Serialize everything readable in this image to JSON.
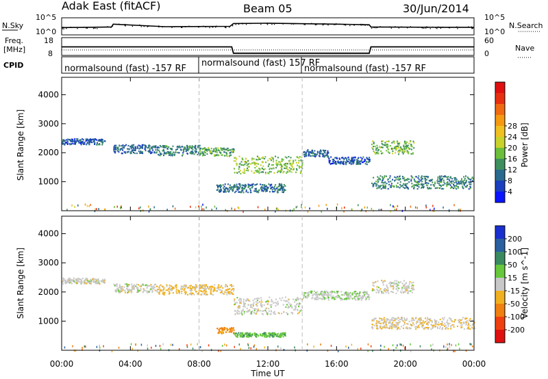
{
  "header": {
    "station": "Adak East (fitACF)",
    "beam": "Beam 05",
    "date": "30/Jun/2014"
  },
  "nsky_panel": {
    "left_label": "N.Sky",
    "left_ticks": [
      "10^5",
      "10^0"
    ],
    "right_label": "N.Search",
    "right_ticks": [
      "10^5",
      "10^0"
    ]
  },
  "freq_panel": {
    "left_label_line1": "Freq.",
    "left_label_line2": "[MHz]",
    "left_ticks": [
      "18",
      "8"
    ],
    "right_label": "Nave",
    "right_ticks": [
      "60",
      "0"
    ]
  },
  "cpid_panel": {
    "label": "CPID",
    "segments": [
      {
        "text": "normalsound (fast) -157 RF",
        "start_hour": 0,
        "end_hour": 8
      },
      {
        "text": "normalsound (fast) 157 RF",
        "start_hour": 8,
        "end_hour": 14
      },
      {
        "text": "normalsound (fast) -157 RF",
        "start_hour": 14,
        "end_hour": 24
      }
    ]
  },
  "power_panel": {
    "ylabel": "Slant Range [km]",
    "yticks": [
      "1000",
      "2000",
      "3000",
      "4000"
    ],
    "colorbar_label": "Power [dB]",
    "colorbar_ticks": [
      "4",
      "8",
      "12",
      "16",
      "20",
      "24",
      "28"
    ],
    "colorbar_colors": [
      "#0a14ff",
      "#1a3fbf",
      "#2a6a8f",
      "#3e8f5e",
      "#6cbf3a",
      "#c8d22a",
      "#f0c020",
      "#f59a10",
      "#f06a10",
      "#e83010",
      "#e01010"
    ]
  },
  "velocity_panel": {
    "ylabel": "Slant Range [km]",
    "yticks": [
      "1000",
      "2000",
      "3000",
      "4000"
    ],
    "colorbar_label": "Velocity [m s^-1]",
    "colorbar_ticks": [
      "200",
      "100",
      "50",
      "15",
      "-15",
      "-50",
      "-100",
      "-200"
    ],
    "colorbar_colors": [
      "#1a2fd0",
      "#2a5fa0",
      "#3a8a60",
      "#66c83a",
      "#c8c8c8",
      "#f0b020",
      "#f08010",
      "#f04010",
      "#e01010"
    ]
  },
  "xaxis": {
    "ticks": [
      "00:00",
      "04:00",
      "08:00",
      "12:00",
      "16:00",
      "20:00",
      "00:00"
    ],
    "label": "Time UT"
  },
  "chart_data": [
    {
      "type": "line",
      "title": "N.Sky / N.Search",
      "x": [
        0,
        1.5,
        2.9,
        3,
        6,
        9.8,
        10,
        12,
        16,
        17.9,
        18,
        22,
        24
      ],
      "series": [
        {
          "name": "N.Sky",
          "values": [
            2.1,
            2.2,
            2.3,
            3.2,
            2.4,
            2.5,
            3.4,
            3.5,
            3.2,
            3.0,
            2.3,
            2.2,
            2.2
          ]
        }
      ],
      "ylim": [
        0,
        5
      ]
    },
    {
      "type": "line",
      "title": "Freq. / Nave",
      "x": [
        0,
        9.9,
        10,
        17.9,
        18,
        24
      ],
      "series": [
        {
          "name": "Freq. [MHz]",
          "values": [
            12.8,
            12.8,
            8.9,
            8.9,
            12.8,
            12.8
          ]
        },
        {
          "name": "Nave",
          "values": [
            19,
            19,
            19,
            19,
            19,
            19
          ]
        }
      ],
      "ylim": [
        8,
        18
      ]
    },
    {
      "type": "heatmap",
      "title": "Power [dB]",
      "xlabel": "Time UT",
      "ylabel": "Slant Range [km]",
      "xlim": [
        0,
        24
      ],
      "ylim": [
        0,
        4600
      ],
      "echo_bands": [
        {
          "t_start": 0.0,
          "t_end": 2.5,
          "r_center": 2400,
          "r_width": 200,
          "power_db": 6
        },
        {
          "t_start": 3.0,
          "t_end": 5.5,
          "r_center": 2150,
          "r_width": 300,
          "power_db": 7
        },
        {
          "t_start": 5.5,
          "t_end": 8.0,
          "r_center": 2100,
          "r_width": 350,
          "power_db": 9
        },
        {
          "t_start": 8.0,
          "t_end": 10.0,
          "r_center": 2050,
          "r_width": 300,
          "power_db": 12
        },
        {
          "t_start": 10.0,
          "t_end": 14.0,
          "r_center": 1600,
          "r_width": 600,
          "power_db": 14
        },
        {
          "t_start": 9.0,
          "t_end": 13.0,
          "r_center": 800,
          "r_width": 300,
          "power_db": 8
        },
        {
          "t_start": 14.0,
          "t_end": 15.5,
          "r_center": 2000,
          "r_width": 250,
          "power_db": 7
        },
        {
          "t_start": 15.5,
          "t_end": 17.9,
          "r_center": 1750,
          "r_width": 250,
          "power_db": 6
        },
        {
          "t_start": 18.0,
          "t_end": 20.5,
          "r_center": 2200,
          "r_width": 450,
          "power_db": 13
        },
        {
          "t_start": 18.0,
          "t_end": 24.0,
          "r_center": 1000,
          "r_width": 450,
          "power_db": 9
        }
      ]
    },
    {
      "type": "heatmap",
      "title": "Velocity [m s^-1]",
      "xlabel": "Time UT",
      "ylabel": "Slant Range [km]",
      "xlim": [
        0,
        24
      ],
      "ylim": [
        0,
        4600
      ],
      "echo_bands": [
        {
          "t_start": 0.0,
          "t_end": 2.5,
          "r_center": 2400,
          "r_width": 200,
          "velocity": 0
        },
        {
          "t_start": 3.0,
          "t_end": 5.5,
          "r_center": 2150,
          "r_width": 300,
          "velocity": 0
        },
        {
          "t_start": 5.5,
          "t_end": 10.0,
          "r_center": 2100,
          "r_width": 350,
          "velocity": -20
        },
        {
          "t_start": 10.0,
          "t_end": 14.0,
          "r_center": 1550,
          "r_width": 600,
          "velocity": 0
        },
        {
          "t_start": 9.0,
          "t_end": 10.0,
          "r_center": 700,
          "r_width": 200,
          "velocity": -60
        },
        {
          "t_start": 10.0,
          "t_end": 13.0,
          "r_center": 550,
          "r_width": 150,
          "velocity": 40
        },
        {
          "t_start": 14.0,
          "t_end": 17.9,
          "r_center": 1900,
          "r_width": 300,
          "velocity": 10
        },
        {
          "t_start": 18.0,
          "t_end": 20.5,
          "r_center": 2200,
          "r_width": 450,
          "velocity": 0
        },
        {
          "t_start": 18.0,
          "t_end": 24.0,
          "r_center": 950,
          "r_width": 400,
          "velocity": -10
        }
      ]
    }
  ]
}
